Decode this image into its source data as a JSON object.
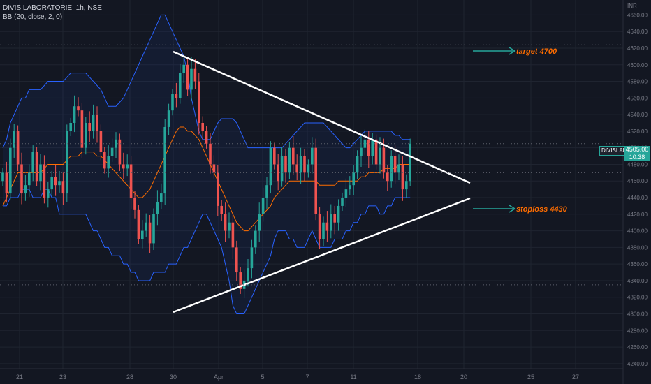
{
  "header": {
    "symbol_line": "DIVIS LABORATORIE, 1h, NSE",
    "indicator_line": "BB (20, close, 2, 0)"
  },
  "currency": "INR",
  "price_tag": {
    "symbol": "DIVISLAB",
    "price": "4505.00",
    "countdown": "10:38"
  },
  "annotations": {
    "target": "target 4700",
    "stoploss": "stoploss 4430"
  },
  "colors": {
    "background": "#131722",
    "up": "#26a69a",
    "down": "#ef5350",
    "bb_band": "#2962ff",
    "bb_basis": "#ff6d00",
    "trendline": "#ffffff",
    "arrow": "#26a69a",
    "annotation": "#ff6d00"
  },
  "chart_data": {
    "type": "candlestick",
    "x_tick_labels": [
      "21",
      "23",
      "28",
      "30",
      "Apr",
      "5",
      "7",
      "11",
      "18",
      "20",
      "25",
      "27"
    ],
    "y_ticks": [
      4240,
      4260,
      4280,
      4300,
      4320,
      4340,
      4360,
      4380,
      4400,
      4420,
      4440,
      4460,
      4480,
      4500,
      4520,
      4540,
      4560,
      4580,
      4600,
      4620,
      4640,
      4660
    ],
    "ylim": [
      4234,
      4678
    ],
    "close": [
      4470,
      4445,
      4500,
      4520,
      4480,
      4445,
      4455,
      4470,
      4495,
      4460,
      4480,
      4440,
      4450,
      4465,
      4455,
      4460,
      4445,
      4520,
      4530,
      4550,
      4545,
      4500,
      4530,
      4520,
      4540,
      4520,
      4495,
      4475,
      4490,
      4500,
      4510,
      4480,
      4475,
      4480,
      4440,
      4425,
      4390,
      4400,
      4410,
      4385,
      4420,
      4435,
      4445,
      4525,
      4545,
      4565,
      4560,
      4590,
      4600,
      4570,
      4595,
      4580,
      4530,
      4520,
      4505,
      4480,
      4470,
      4430,
      4420,
      4400,
      4410,
      4380,
      4350,
      4330,
      4340,
      4355,
      4380,
      4400,
      4420,
      4440,
      4455,
      4500,
      4480,
      4460,
      4490,
      4470,
      4500,
      4480,
      4470,
      4490,
      4470,
      4480,
      4500,
      4420,
      4390,
      4410,
      4400,
      4420,
      4410,
      4430,
      4440,
      4450,
      4455,
      4470,
      4490,
      4500,
      4510,
      4490,
      4510,
      4480,
      4500,
      4470,
      4460,
      4490,
      4470,
      4480,
      4450,
      4460,
      4505
    ],
    "series": [
      {
        "name": "BB",
        "values": [
          4430,
          4430,
          4440,
          4440,
          4440,
          4450,
          4450,
          4450,
          4440,
          4440,
          4440,
          4450,
          4450,
          4440,
          4440,
          4420,
          4420,
          4420,
          4420,
          4420,
          4420,
          4420,
          4420,
          4410,
          4400,
          4400,
          4390,
          4380,
          4380,
          4370,
          4370,
          4370,
          4360,
          4360,
          4350,
          4350,
          4340,
          4340,
          4340,
          4340,
          4350,
          4350,
          4350,
          4350,
          4360,
          4360,
          4360,
          4370,
          4380,
          4380,
          4390,
          4400,
          4410,
          4420,
          4420,
          4410,
          4400,
          4390,
          4380,
          4360,
          4340,
          4310,
          4300,
          4300,
          4300,
          4310,
          4320,
          4330,
          4340,
          4350,
          4360,
          4370,
          4390,
          4400,
          4400,
          4400,
          4390,
          4390,
          4380,
          4380,
          4380,
          4390,
          4400,
          4390,
          4380,
          4380,
          4380,
          4380,
          4390,
          4390,
          4390,
          4400,
          4400,
          4410,
          4410,
          4420,
          4420,
          4430,
          4430,
          4430,
          4420,
          4420,
          4430,
          4430,
          4440,
          4440,
          4440,
          4440,
          4440
        ]
      },
      {
        "name": "BB",
        "values": [
          4430,
          4440,
          4450,
          4460,
          4470,
          4470,
          4470,
          4470,
          4470,
          4470,
          4470,
          4475,
          4480,
          4480,
          4480,
          4480,
          4480,
          4485,
          4490,
          4490,
          4490,
          4495,
          4495,
          4495,
          4495,
          4490,
          4490,
          4485,
          4480,
          4475,
          4470,
          4465,
          4460,
          4455,
          4450,
          4445,
          4440,
          4440,
          4445,
          4450,
          4460,
          4470,
          4480,
          4490,
          4500,
          4510,
          4520,
          4525,
          4525,
          4520,
          4520,
          4515,
          4510,
          4500,
          4490,
          4480,
          4470,
          4460,
          4450,
          4440,
          4430,
          4420,
          4410,
          4405,
          4400,
          4400,
          4405,
          4410,
          4415,
          4420,
          4425,
          4430,
          4440,
          4445,
          4450,
          4455,
          4460,
          4460,
          4460,
          4460,
          4460,
          4460,
          4460,
          4460,
          4455,
          4455,
          4455,
          4455,
          4455,
          4460,
          4460,
          4460,
          4460,
          4460,
          4460,
          4465,
          4465,
          4470,
          4470,
          4470,
          4470,
          4475,
          4475,
          4475,
          4475,
          4480,
          4480,
          4480,
          4480
        ]
      },
      {
        "name": "BB",
        "values": [
          4500,
          4510,
          4530,
          4540,
          4550,
          4560,
          4560,
          4570,
          4570,
          4570,
          4570,
          4575,
          4580,
          4580,
          4580,
          4580,
          4580,
          4585,
          4590,
          4590,
          4590,
          4590,
          4590,
          4585,
          4580,
          4575,
          4570,
          4560,
          4550,
          4550,
          4550,
          4555,
          4560,
          4570,
          4580,
          4590,
          4600,
          4610,
          4620,
          4630,
          4640,
          4650,
          4660,
          4660,
          4650,
          4640,
          4630,
          4620,
          4610,
          4590,
          4560,
          4540,
          4520,
          4510,
          4510,
          4510,
          4520,
          4530,
          4535,
          4535,
          4535,
          4535,
          4530,
          4520,
          4510,
          4500,
          4500,
          4500,
          4500,
          4500,
          4500,
          4500,
          4500,
          4500,
          4500,
          4505,
          4510,
          4515,
          4520,
          4525,
          4530,
          4530,
          4530,
          4530,
          4530,
          4530,
          4525,
          4520,
          4515,
          4510,
          4505,
          4500,
          4500,
          4505,
          4510,
          4515,
          4520,
          4520,
          4520,
          4520,
          4520,
          4520,
          4520,
          4520,
          4515,
          4515,
          4510,
          4510,
          4510
        ]
      }
    ],
    "target": 4700,
    "stoploss": 4430
  }
}
